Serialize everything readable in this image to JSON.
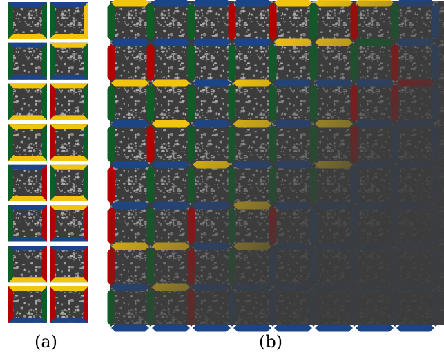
{
  "panels": {
    "a": {
      "label": "(a)",
      "columns": 2,
      "rows": 8,
      "tiles": [
        [
          "B",
          "G",
          "Y",
          "G"
        ],
        [
          "B",
          "Y",
          "Y",
          "G"
        ],
        [
          "B",
          "G",
          "B",
          "G"
        ],
        [
          "Y",
          "G",
          "B",
          "G"
        ],
        [
          "Y",
          "G",
          "Y",
          "G"
        ],
        [
          "Y",
          "G",
          "Y",
          "R"
        ],
        [
          "Y",
          "G",
          "Y",
          "G"
        ],
        [
          "Y",
          "G",
          "Y",
          "R"
        ],
        [
          "B",
          "R",
          "Y",
          "G"
        ],
        [
          "Y",
          "G",
          "Y",
          "G"
        ],
        [
          "B",
          "R",
          "B",
          "G"
        ],
        [
          "Y",
          "R",
          "B",
          "R"
        ],
        [
          "B",
          "R",
          "Y",
          "G"
        ],
        [
          "B",
          "R",
          "Y",
          "R"
        ],
        [
          "Y",
          "G",
          "B",
          "R"
        ],
        [
          "Y",
          "R",
          "B",
          "R"
        ]
      ]
    },
    "b": {
      "label": "(b)",
      "columns": 8,
      "rows": 8,
      "horizontal_edges": [
        [
          "Y",
          "B",
          "B",
          "B",
          "Y",
          "Y",
          "Y",
          "B"
        ],
        [
          "B",
          "B",
          "B",
          "B",
          "Y",
          "Y",
          "G",
          "B"
        ],
        [
          "Y",
          "Y",
          "B",
          "Y",
          "B",
          "B",
          "B",
          "R"
        ],
        [
          "B",
          "Y",
          "B",
          "Y",
          "B",
          "Y",
          "B",
          "B"
        ],
        [
          "B",
          "B",
          "Y",
          "B",
          "B",
          "Y",
          "B",
          "B"
        ],
        [
          "B",
          "B",
          "B",
          "Y",
          "B",
          "B",
          "B",
          "B"
        ],
        [
          "Y",
          "Y",
          "B",
          "Y",
          "B",
          "B",
          "B",
          "B"
        ],
        [
          "B",
          "Y",
          "B",
          "B",
          "B",
          "B",
          "B",
          "B"
        ],
        [
          "B",
          "B",
          "B",
          "B",
          "B",
          "B",
          "B",
          "B"
        ]
      ],
      "vertical_edges": [
        [
          "G",
          "G",
          "G",
          "R",
          "R",
          "G",
          "R",
          "G",
          "B"
        ],
        [
          "R",
          "R",
          "G",
          "G",
          "G",
          "G",
          "G",
          "R",
          "B"
        ],
        [
          "G",
          "G",
          "G",
          "G",
          "G",
          "G",
          "R",
          "R",
          "B"
        ],
        [
          "G",
          "R",
          "G",
          "G",
          "G",
          "G",
          "R",
          "B",
          "B"
        ],
        [
          "R",
          "G",
          "G",
          "G",
          "G",
          "G",
          "B",
          "B",
          "B"
        ],
        [
          "R",
          "G",
          "R",
          "G",
          "R",
          "B",
          "B",
          "B",
          "B"
        ],
        [
          "R",
          "G",
          "R",
          "G",
          "B",
          "B",
          "B",
          "B",
          "B"
        ],
        [
          "G",
          "G",
          "R",
          "B",
          "B",
          "B",
          "B",
          "B",
          "B"
        ]
      ]
    }
  },
  "palette": {
    "B": "#1c4587",
    "G": "#0e5c26",
    "Y": "#f1c40f",
    "R": "#b30000",
    "texture_dark": "#3c3c3c",
    "texture_light": "#b4b4b4"
  }
}
